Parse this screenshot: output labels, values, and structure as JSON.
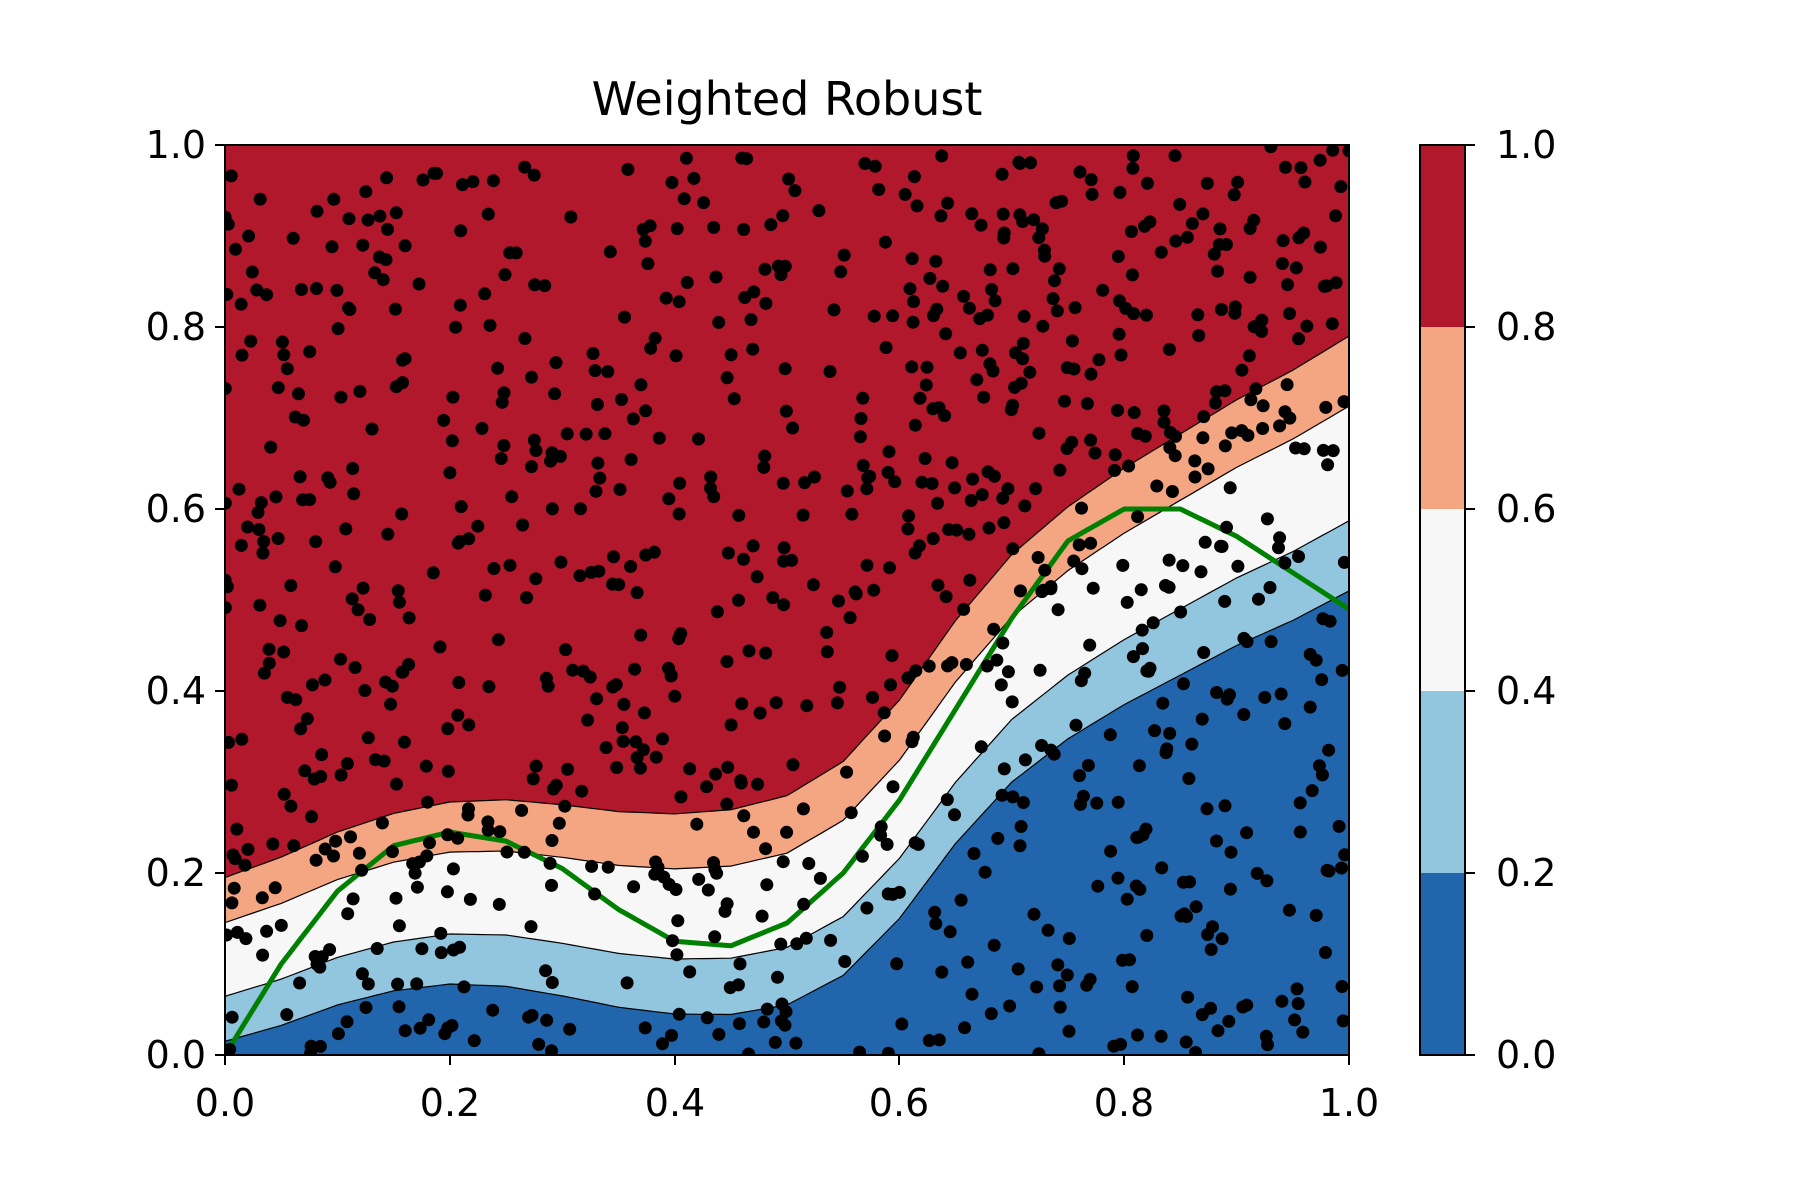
{
  "chart_data": {
    "type": "contourf",
    "title": "Weighted Robust",
    "xlabel": "",
    "ylabel": "",
    "xlim": [
      0.0,
      1.0
    ],
    "ylim": [
      0.0,
      1.0
    ],
    "x_ticks": [
      "0.0",
      "0.2",
      "0.4",
      "0.6",
      "0.8",
      "1.0"
    ],
    "y_ticks": [
      "0.0",
      "0.2",
      "0.4",
      "0.6",
      "0.8",
      "1.0"
    ],
    "grid": false,
    "colorbar": {
      "levels": [
        0.0,
        0.2,
        0.4,
        0.6,
        0.8,
        1.0
      ],
      "tick_labels": [
        "0.0",
        "0.2",
        "0.4",
        "0.6",
        "0.8",
        "1.0"
      ],
      "colors": [
        "#2166ac",
        "#92c5de",
        "#f7f7f7",
        "#f4a582",
        "#b2182b"
      ]
    },
    "boundary_x": [
      0.0,
      0.05,
      0.1,
      0.15,
      0.2,
      0.25,
      0.3,
      0.35,
      0.4,
      0.45,
      0.5,
      0.55,
      0.6,
      0.65,
      0.7,
      0.75,
      0.8,
      0.85,
      0.9,
      0.95,
      1.0
    ],
    "boundary_mid": [
      0.105,
      0.125,
      0.15,
      0.168,
      0.178,
      0.178,
      0.17,
      0.16,
      0.155,
      0.157,
      0.17,
      0.205,
      0.27,
      0.355,
      0.425,
      0.475,
      0.515,
      0.55,
      0.585,
      0.615,
      0.65
    ],
    "band_offsets": [
      -0.1,
      -0.045,
      -0.015,
      0.015,
      0.045,
      0.1
    ],
    "true_boundary": {
      "color": "#008000",
      "x": [
        0.0,
        0.05,
        0.1,
        0.15,
        0.2,
        0.25,
        0.3,
        0.35,
        0.4,
        0.45,
        0.5,
        0.55,
        0.6,
        0.65,
        0.7,
        0.75,
        0.8,
        0.85,
        0.9,
        0.95,
        1.0
      ],
      "y": [
        0.0,
        0.1,
        0.18,
        0.23,
        0.245,
        0.235,
        0.205,
        0.16,
        0.125,
        0.12,
        0.145,
        0.2,
        0.28,
        0.38,
        0.48,
        0.565,
        0.6,
        0.6,
        0.57,
        0.53,
        0.49
      ]
    },
    "points": {
      "color": "#000000",
      "count": 1000,
      "seed": 7,
      "note": "uniformly scattered samples over the unit square"
    }
  }
}
